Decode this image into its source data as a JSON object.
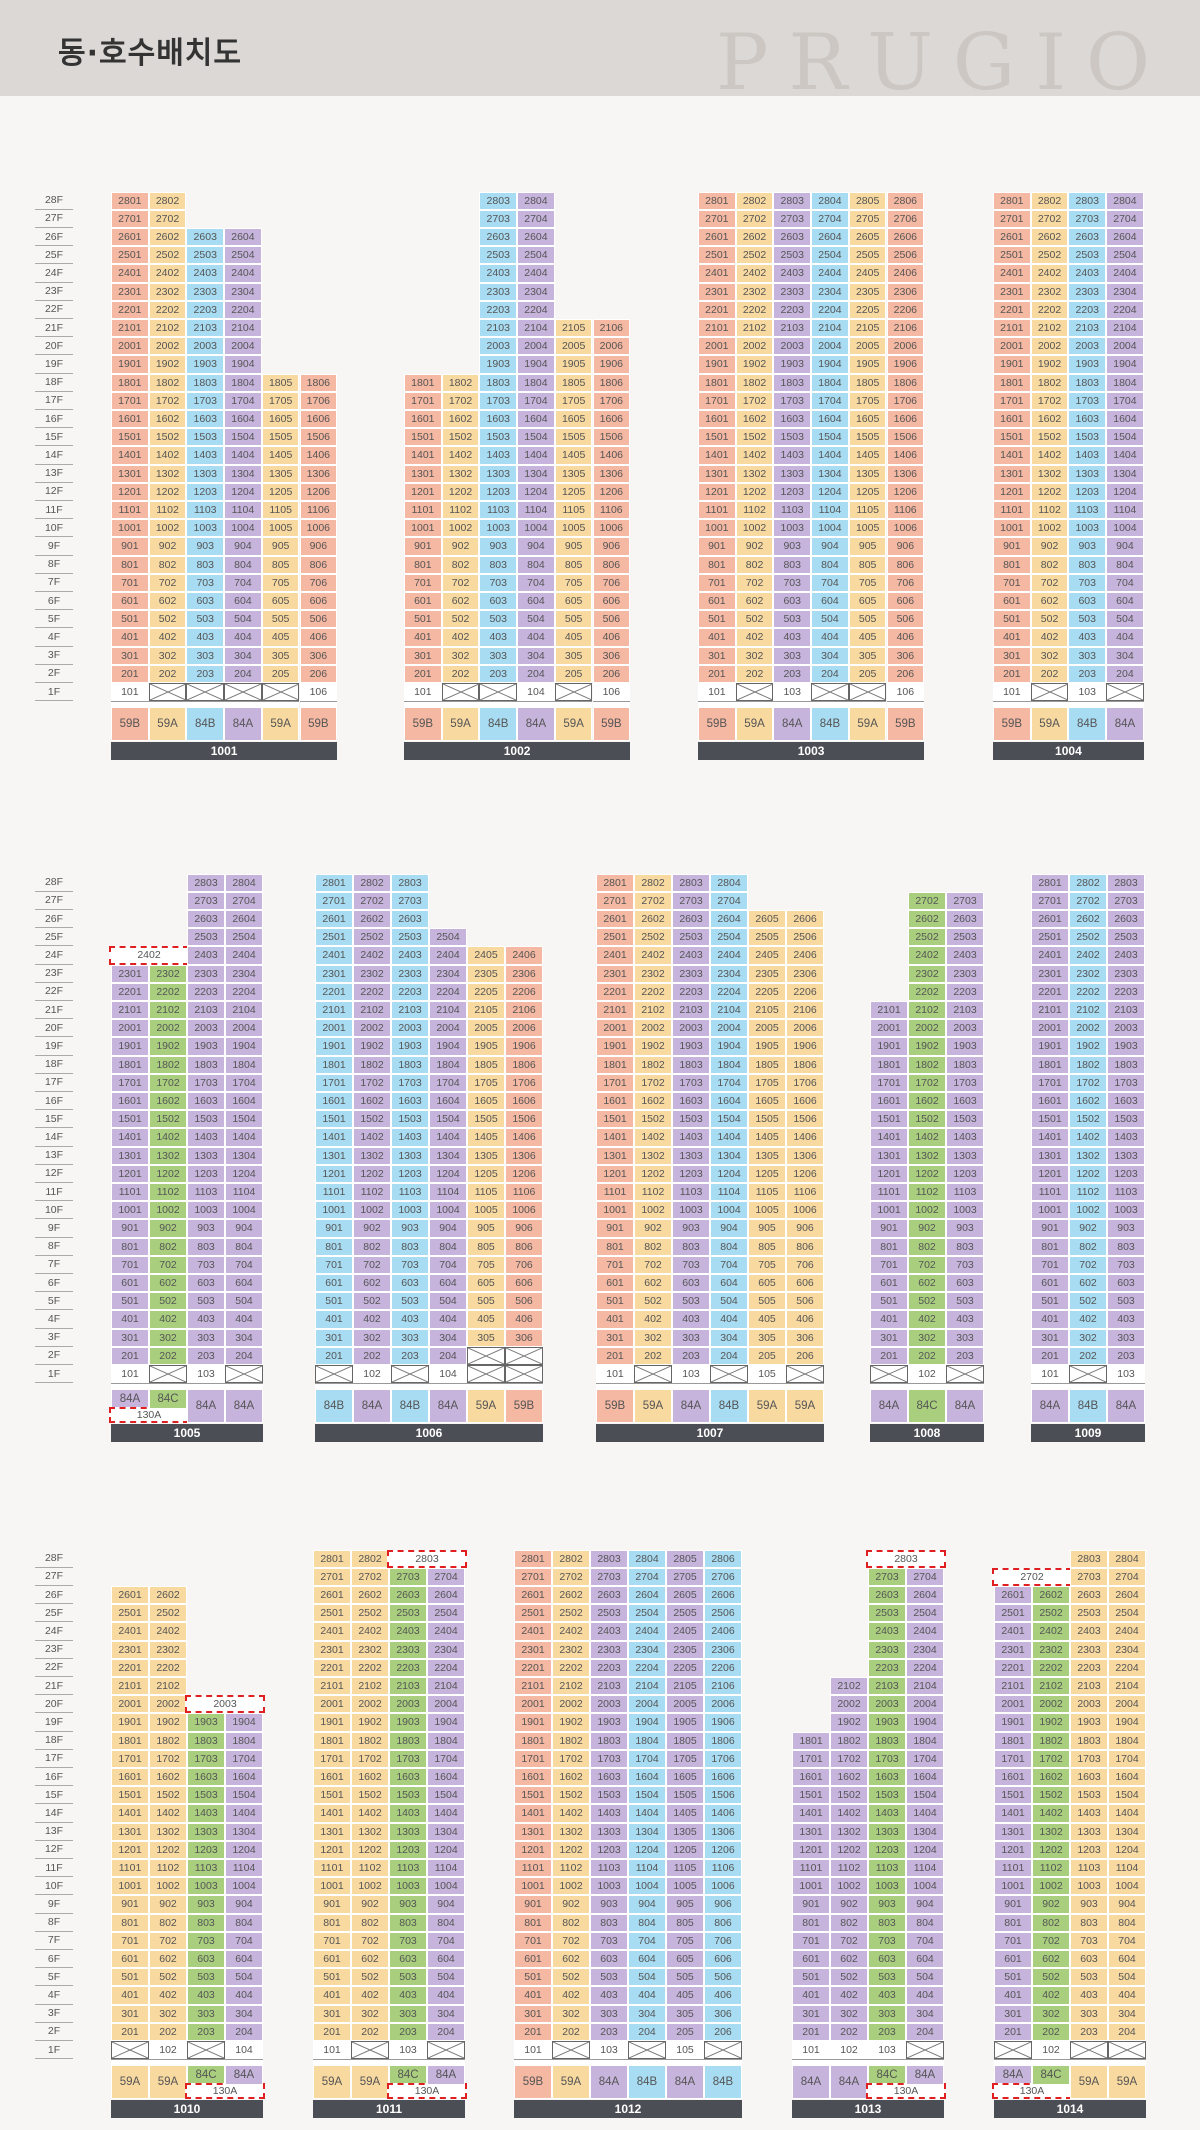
{
  "header": {
    "title": "동·호수배치도",
    "watermark": "PRUGIO"
  },
  "colors": {
    "59A": "#f8d9a0",
    "59B": "#f5b8a2",
    "84A": "#c7b4dd",
    "84B": "#a8dcf2",
    "84C": "#a9cf7e",
    "130A": "#ffffff",
    "header_bg": "#dcd8d5",
    "label_bg": "#4b4f55",
    "highlight": "#e02020"
  },
  "floor_labels": [
    "28F",
    "27F",
    "26F",
    "25F",
    "24F",
    "23F",
    "22F",
    "21F",
    "20F",
    "19F",
    "18F",
    "17F",
    "16F",
    "15F",
    "14F",
    "13F",
    "12F",
    "11F",
    "10F",
    "9F",
    "8F",
    "7F",
    "6F",
    "5F",
    "4F",
    "3F",
    "2F",
    "1F"
  ],
  "buildings": [
    {
      "name": "1001",
      "columns": [
        {
          "line": 1,
          "type": "59B",
          "top": 28,
          "first_floor": "unit"
        },
        {
          "line": 2,
          "type": "59A",
          "top": 28,
          "first_floor": "empty"
        },
        {
          "line": 3,
          "type": "84B",
          "top": 26,
          "first_floor": "empty"
        },
        {
          "line": 4,
          "type": "84A",
          "top": 26,
          "first_floor": "empty"
        },
        {
          "line": 5,
          "type": "59A",
          "top": 18,
          "first_floor": "empty"
        },
        {
          "line": 6,
          "type": "59B",
          "top": 18,
          "first_floor": "unit"
        }
      ]
    },
    {
      "name": "1002",
      "columns": [
        {
          "line": 1,
          "type": "59B",
          "top": 18,
          "first_floor": "unit"
        },
        {
          "line": 2,
          "type": "59A",
          "top": 18,
          "first_floor": "empty"
        },
        {
          "line": 3,
          "type": "84B",
          "top": 28,
          "first_floor": "empty"
        },
        {
          "line": 4,
          "type": "84A",
          "top": 28,
          "first_floor": "unit"
        },
        {
          "line": 5,
          "type": "59A",
          "top": 21,
          "first_floor": "empty"
        },
        {
          "line": 6,
          "type": "59B",
          "top": 21,
          "first_floor": "unit"
        }
      ]
    },
    {
      "name": "1003",
      "columns": [
        {
          "line": 1,
          "type": "59B",
          "top": 28,
          "first_floor": "unit"
        },
        {
          "line": 2,
          "type": "59A",
          "top": 28,
          "first_floor": "empty"
        },
        {
          "line": 3,
          "type": "84A",
          "top": 28,
          "first_floor": "unit"
        },
        {
          "line": 4,
          "type": "84B",
          "top": 28,
          "first_floor": "empty"
        },
        {
          "line": 5,
          "type": "59A",
          "top": 28,
          "first_floor": "empty"
        },
        {
          "line": 6,
          "type": "59B",
          "top": 28,
          "first_floor": "unit"
        }
      ]
    },
    {
      "name": "1004",
      "columns": [
        {
          "line": 1,
          "type": "59B",
          "top": 28,
          "first_floor": "unit"
        },
        {
          "line": 2,
          "type": "59A",
          "top": 28,
          "first_floor": "empty"
        },
        {
          "line": 3,
          "type": "84B",
          "top": 28,
          "first_floor": "unit"
        },
        {
          "line": 4,
          "type": "84A",
          "top": 28,
          "first_floor": "empty"
        }
      ]
    },
    {
      "name": "1005",
      "columns": [
        {
          "line": 1,
          "type": "84A",
          "top": 23,
          "first_floor": "unit",
          "type_extra": "130A",
          "highlight_floor": 24,
          "highlight_text": "2402"
        },
        {
          "line": 2,
          "type": "84C",
          "top": 23,
          "first_floor": "empty"
        },
        {
          "line": 3,
          "type": "84A",
          "top": 28,
          "first_floor": "unit"
        },
        {
          "line": 4,
          "type": "84A",
          "top": 28,
          "first_floor": "empty"
        }
      ]
    },
    {
      "name": "1006",
      "columns": [
        {
          "line": 1,
          "type": "84B",
          "top": 28,
          "first_floor": "empty"
        },
        {
          "line": 2,
          "type": "84A",
          "top": 28,
          "first_floor": "unit"
        },
        {
          "line": 3,
          "type": "84B",
          "top": 28,
          "first_floor": "empty"
        },
        {
          "line": 4,
          "type": "84A",
          "top": 25,
          "first_floor": "unit"
        },
        {
          "line": 5,
          "type": "59A",
          "top": 24,
          "first_floor": "empty",
          "second_floor": "empty"
        },
        {
          "line": 6,
          "type": "59B",
          "top": 24,
          "first_floor": "empty",
          "second_floor": "empty"
        }
      ]
    },
    {
      "name": "1007",
      "columns": [
        {
          "line": 1,
          "type": "59B",
          "top": 28,
          "first_floor": "unit"
        },
        {
          "line": 2,
          "type": "59A",
          "top": 28,
          "first_floor": "empty"
        },
        {
          "line": 3,
          "type": "84A",
          "top": 28,
          "first_floor": "unit"
        },
        {
          "line": 4,
          "type": "84B",
          "top": 28,
          "first_floor": "empty"
        },
        {
          "line": 5,
          "type": "59A",
          "top": 26,
          "first_floor": "unit"
        },
        {
          "line": 6,
          "type": "59A",
          "top": 26,
          "first_floor": "empty"
        }
      ]
    },
    {
      "name": "1008",
      "columns": [
        {
          "line": 1,
          "type": "84A",
          "top": 21,
          "first_floor": "empty"
        },
        {
          "line": 2,
          "type": "84C",
          "top": 27,
          "first_floor": "unit"
        },
        {
          "line": 3,
          "type": "84A",
          "top": 27,
          "first_floor": "empty"
        }
      ]
    },
    {
      "name": "1009",
      "columns": [
        {
          "line": 1,
          "type": "84A",
          "top": 28,
          "first_floor": "unit"
        },
        {
          "line": 2,
          "type": "84B",
          "top": 28,
          "first_floor": "empty"
        },
        {
          "line": 3,
          "type": "84A",
          "top": 28,
          "first_floor": "unit"
        }
      ]
    },
    {
      "name": "1010",
      "columns": [
        {
          "line": 1,
          "type": "59A",
          "top": 26,
          "first_floor": "empty"
        },
        {
          "line": 2,
          "type": "59A",
          "top": 26,
          "first_floor": "unit"
        },
        {
          "line": 3,
          "type": "84C",
          "top": 19,
          "first_floor": "empty",
          "type_extra": "130A",
          "highlight_floor": 20,
          "highlight_text": "2003"
        },
        {
          "line": 4,
          "type": "84A",
          "top": 19,
          "first_floor": "unit"
        }
      ]
    },
    {
      "name": "1011",
      "columns": [
        {
          "line": 1,
          "type": "59A",
          "top": 28,
          "first_floor": "unit"
        },
        {
          "line": 2,
          "type": "59A",
          "top": 28,
          "first_floor": "empty"
        },
        {
          "line": 3,
          "type": "84C",
          "top": 27,
          "first_floor": "unit",
          "type_extra": "130A",
          "highlight_floor": 28,
          "highlight_text": "2803"
        },
        {
          "line": 4,
          "type": "84A",
          "top": 27,
          "first_floor": "empty"
        }
      ]
    },
    {
      "name": "1012",
      "columns": [
        {
          "line": 1,
          "type": "59B",
          "top": 28,
          "first_floor": "unit"
        },
        {
          "line": 2,
          "type": "59A",
          "top": 28,
          "first_floor": "empty"
        },
        {
          "line": 3,
          "type": "84A",
          "top": 28,
          "first_floor": "unit"
        },
        {
          "line": 4,
          "type": "84B",
          "top": 28,
          "first_floor": "empty"
        },
        {
          "line": 5,
          "type": "84A",
          "top": 28,
          "first_floor": "unit"
        },
        {
          "line": 6,
          "type": "84B",
          "top": 28,
          "first_floor": "empty"
        }
      ]
    },
    {
      "name": "1013",
      "columns": [
        {
          "line": 1,
          "type": "84A",
          "top": 18,
          "first_floor": "unit"
        },
        {
          "line": 2,
          "type": "84A",
          "top": 21,
          "first_floor": "unit"
        },
        {
          "line": 3,
          "type": "84C",
          "top": 27,
          "first_floor": "unit",
          "type_extra": "130A",
          "highlight_floor": 28,
          "highlight_text": "2803"
        },
        {
          "line": 4,
          "type": "84A",
          "top": 27,
          "first_floor": "empty"
        }
      ]
    },
    {
      "name": "1014",
      "columns": [
        {
          "line": 1,
          "type": "84A",
          "top": 26,
          "first_floor": "empty",
          "type_extra": "130A",
          "highlight_floor": 27,
          "highlight_text": "2702"
        },
        {
          "line": 2,
          "type": "84C",
          "top": 26,
          "first_floor": "unit"
        },
        {
          "line": 3,
          "type": "59A",
          "top": 28,
          "first_floor": "empty"
        },
        {
          "line": 4,
          "type": "59A",
          "top": 28,
          "first_floor": "empty"
        }
      ]
    }
  ]
}
